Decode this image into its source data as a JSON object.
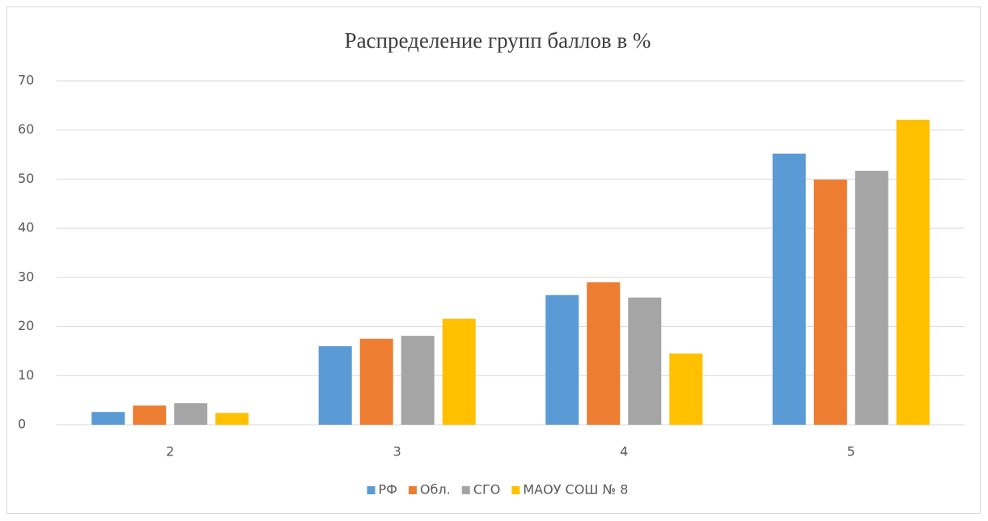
{
  "chart_data": {
    "type": "bar",
    "title": "Распределение групп баллов в %",
    "categories": [
      "2",
      "3",
      "4",
      "5"
    ],
    "series": [
      {
        "name": "РФ",
        "color": "#5b9bd5",
        "values": [
          2.6,
          16.0,
          26.4,
          55.2
        ]
      },
      {
        "name": "Обл.",
        "color": "#ed7d31",
        "values": [
          3.9,
          17.5,
          29.0,
          49.9
        ]
      },
      {
        "name": "СГО",
        "color": "#a5a5a5",
        "values": [
          4.4,
          18.1,
          25.9,
          51.7
        ]
      },
      {
        "name": "МАОУ СОШ № 8",
        "color": "#ffc000",
        "values": [
          2.4,
          21.6,
          14.5,
          62.1
        ]
      }
    ],
    "ylim": [
      0,
      70
    ],
    "yticks": [
      0,
      10,
      20,
      30,
      40,
      50,
      60,
      70
    ],
    "grid": true,
    "legend": "bottom"
  }
}
